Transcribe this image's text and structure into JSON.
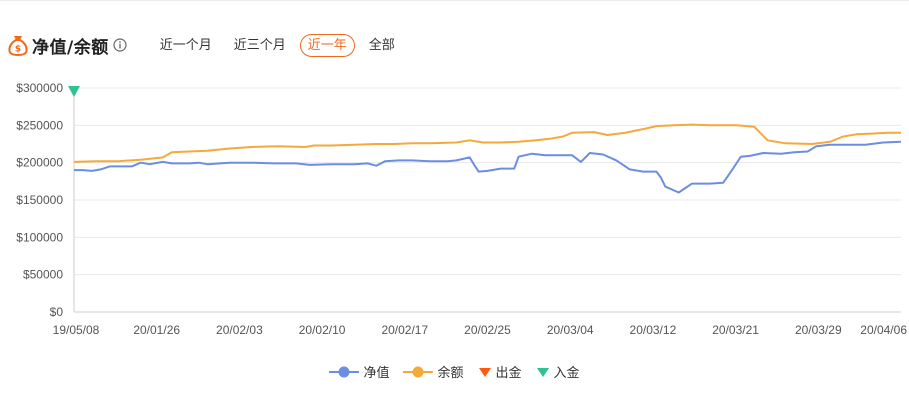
{
  "header": {
    "title": "净值/余额",
    "tabs": [
      {
        "label": "近一个月",
        "active": false
      },
      {
        "label": "近三个月",
        "active": false
      },
      {
        "label": "近一年",
        "active": true
      },
      {
        "label": "全部",
        "active": false
      }
    ]
  },
  "colors": {
    "net_value": "#6c8ee0",
    "balance": "#f5a93b",
    "withdraw": "#ff5a0d",
    "deposit": "#30c28f",
    "accent": "#f06a1d"
  },
  "chart_data": {
    "type": "line",
    "ylim": [
      0,
      300000
    ],
    "y_ticks": [
      "$0",
      "$50000",
      "$100000",
      "$150000",
      "$200000",
      "$250000",
      "$300000"
    ],
    "x_ticks": [
      "19/05/08",
      "20/01/26",
      "20/02/03",
      "20/02/10",
      "20/02/17",
      "20/02/25",
      "20/03/04",
      "20/03/12",
      "20/03/21",
      "20/03/29",
      "20/04/06"
    ],
    "legend_position": "bottom",
    "series": [
      {
        "name": "净值",
        "color": "#6c8ee0",
        "points": [
          [
            0,
            190000
          ],
          [
            2,
            190000
          ],
          [
            4,
            189000
          ],
          [
            6,
            191000
          ],
          [
            8,
            195000
          ],
          [
            11,
            195000
          ],
          [
            13,
            195000
          ],
          [
            15,
            200000
          ],
          [
            17,
            198000
          ],
          [
            20,
            201000
          ],
          [
            22,
            199000
          ],
          [
            26,
            199000
          ],
          [
            28,
            200000
          ],
          [
            30,
            198000
          ],
          [
            35,
            200000
          ],
          [
            40,
            200000
          ],
          [
            45,
            199000
          ],
          [
            50,
            199000
          ],
          [
            53,
            197000
          ],
          [
            58,
            198000
          ],
          [
            63,
            198000
          ],
          [
            66,
            199000
          ],
          [
            68,
            196000
          ],
          [
            70,
            202000
          ],
          [
            73,
            203000
          ],
          [
            76,
            203000
          ],
          [
            80,
            202000
          ],
          [
            84,
            202000
          ],
          [
            86,
            203000
          ],
          [
            89,
            207000
          ],
          [
            90,
            197000
          ],
          [
            91,
            188000
          ],
          [
            93,
            189000
          ],
          [
            96,
            192000
          ],
          [
            99,
            192000
          ],
          [
            100,
            208000
          ],
          [
            103,
            212000
          ],
          [
            106,
            210000
          ],
          [
            112,
            210000
          ],
          [
            114,
            201000
          ],
          [
            116,
            213000
          ],
          [
            119,
            211000
          ],
          [
            122,
            203000
          ],
          [
            125,
            191000
          ],
          [
            128,
            188000
          ],
          [
            131,
            188000
          ],
          [
            132,
            180000
          ],
          [
            133,
            168000
          ],
          [
            136,
            160000
          ],
          [
            139,
            172000
          ],
          [
            143,
            172000
          ],
          [
            146,
            173000
          ],
          [
            148,
            190000
          ],
          [
            150,
            208000
          ],
          [
            152,
            209000
          ],
          [
            155,
            213000
          ],
          [
            159,
            212000
          ],
          [
            162,
            214000
          ],
          [
            165,
            215000
          ],
          [
            167,
            222000
          ],
          [
            170,
            224000
          ],
          [
            174,
            224000
          ],
          [
            178,
            224000
          ],
          [
            182,
            227000
          ],
          [
            186,
            228000
          ]
        ]
      },
      {
        "name": "余额",
        "color": "#f5a93b",
        "points": [
          [
            0,
            201000
          ],
          [
            5,
            202000
          ],
          [
            10,
            202000
          ],
          [
            15,
            204000
          ],
          [
            20,
            207000
          ],
          [
            22,
            214000
          ],
          [
            26,
            215000
          ],
          [
            30,
            216000
          ],
          [
            35,
            219000
          ],
          [
            40,
            221000
          ],
          [
            46,
            222000
          ],
          [
            52,
            221000
          ],
          [
            54,
            223000
          ],
          [
            58,
            223000
          ],
          [
            63,
            224000
          ],
          [
            68,
            225000
          ],
          [
            72,
            225000
          ],
          [
            76,
            226000
          ],
          [
            80,
            226000
          ],
          [
            86,
            227000
          ],
          [
            89,
            230000
          ],
          [
            92,
            227000
          ],
          [
            96,
            227000
          ],
          [
            100,
            228000
          ],
          [
            104,
            230000
          ],
          [
            107,
            232000
          ],
          [
            110,
            235000
          ],
          [
            112,
            240000
          ],
          [
            117,
            241000
          ],
          [
            120,
            237000
          ],
          [
            124,
            240000
          ],
          [
            128,
            245000
          ],
          [
            131,
            249000
          ],
          [
            135,
            250000
          ],
          [
            139,
            251000
          ],
          [
            143,
            250000
          ],
          [
            149,
            250000
          ],
          [
            153,
            248000
          ],
          [
            156,
            230000
          ],
          [
            160,
            226000
          ],
          [
            166,
            225000
          ],
          [
            170,
            228000
          ],
          [
            173,
            235000
          ],
          [
            176,
            238000
          ],
          [
            180,
            239000
          ],
          [
            183,
            240000
          ],
          [
            186,
            240000
          ]
        ]
      }
    ],
    "markers": [
      {
        "name": "出金",
        "color": "#ff5a0d",
        "points": []
      },
      {
        "name": "入金",
        "color": "#30c28f",
        "points": [
          [
            0,
            300000
          ]
        ]
      }
    ]
  }
}
